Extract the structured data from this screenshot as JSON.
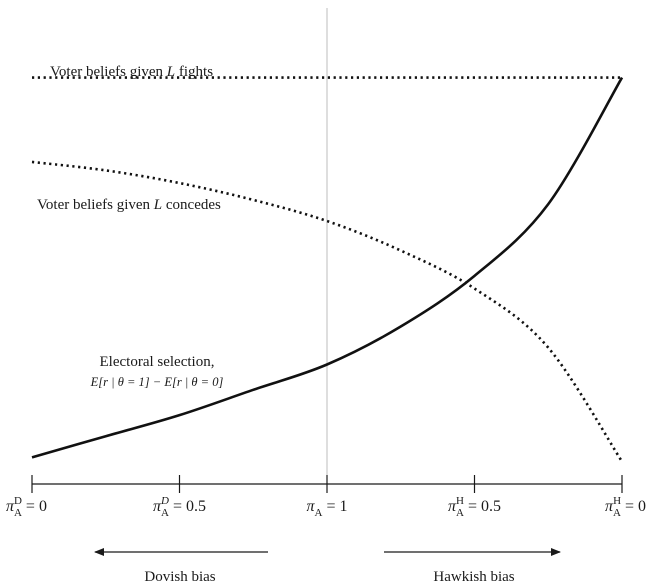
{
  "chart_data": {
    "type": "line",
    "title": "",
    "xlabel": "",
    "ylabel": "",
    "x_ticks": [
      {
        "pos": 0,
        "pi": "π",
        "sub": "A",
        "sup": "D",
        "rest": " = 0"
      },
      {
        "pos": 1,
        "pi": "π",
        "sub": "A",
        "sup": "D",
        "rest": " = 0.5"
      },
      {
        "pos": 2,
        "pi": "π",
        "sub": "A",
        "sup": "",
        "rest": " = 1"
      },
      {
        "pos": 3,
        "pi": "π",
        "sub": "A",
        "sup": "H",
        "rest": " = 0.5"
      },
      {
        "pos": 4,
        "pi": "π",
        "sub": "A",
        "sup": "H",
        "rest": " = 0"
      }
    ],
    "xlim": [
      0,
      4
    ],
    "ylim": [
      0,
      1
    ],
    "vertical_reference_x": 2,
    "series": [
      {
        "key": "fights",
        "style": "dotted",
        "x": [
          0,
          4
        ],
        "y": [
          0.93,
          0.93
        ]
      },
      {
        "key": "concedes",
        "style": "dotted",
        "x": [
          0,
          0.5,
          1,
          1.5,
          2,
          2.5,
          3,
          3.5,
          4
        ],
        "y": [
          0.73,
          0.71,
          0.68,
          0.64,
          0.59,
          0.52,
          0.43,
          0.29,
          0.02
        ]
      },
      {
        "key": "selection",
        "style": "solid",
        "x": [
          0,
          0.5,
          1,
          1.5,
          2,
          2.5,
          3,
          3.5,
          4
        ],
        "y": [
          0.03,
          0.08,
          0.13,
          0.19,
          0.25,
          0.34,
          0.46,
          0.63,
          0.93
        ]
      }
    ],
    "annotations": {
      "fights_label_pre": "Voter beliefs given ",
      "fights_label_var": "L",
      "fights_label_post": " fights",
      "concedes_label_pre": "Voter beliefs given ",
      "concedes_label_var": "L",
      "concedes_label_post": " concedes",
      "selection_label": "Electoral selection,",
      "selection_formula": "E[r | θ = 1] − E[r | θ = 0]",
      "dovish": "Dovish bias",
      "hawkish": "Hawkish bias"
    }
  }
}
